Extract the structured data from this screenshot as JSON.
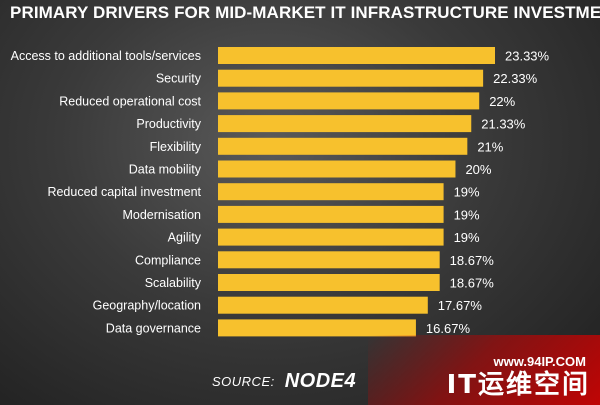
{
  "colors": {
    "bar": "#f7c12d",
    "text": "#ffffff",
    "background": "#2d2d2d"
  },
  "chart_data": {
    "type": "bar",
    "orientation": "horizontal",
    "title": "PRIMARY DRIVERS FOR MID-MARKET IT INFRASTRUCTURE INVESTMENT",
    "categories": [
      "Access to additional tools/services",
      "Security",
      "Reduced operational cost",
      "Productivity",
      "Flexibility",
      "Data mobility",
      "Reduced capital investment",
      "Modernisation",
      "Agility",
      "Compliance",
      "Scalability",
      "Geography/location",
      "Data governance"
    ],
    "values": [
      23.33,
      22.33,
      22,
      21.33,
      21,
      20,
      19,
      19,
      19,
      18.67,
      18.67,
      17.67,
      16.67
    ],
    "value_labels": [
      "23.33%",
      "22.33%",
      "22%",
      "21.33%",
      "21%",
      "20%",
      "19%",
      "19%",
      "19%",
      "18.67%",
      "18.67%",
      "17.67%",
      "16.67%"
    ],
    "xlim": [
      0,
      23.33
    ],
    "xlabel": "",
    "ylabel": "",
    "grid": false,
    "legend": "none"
  },
  "footer": {
    "source_label": "SOURCE:",
    "logo_text": "NODE4"
  },
  "watermark": {
    "url": "www.94IP.COM",
    "name": "IT运维空间"
  }
}
